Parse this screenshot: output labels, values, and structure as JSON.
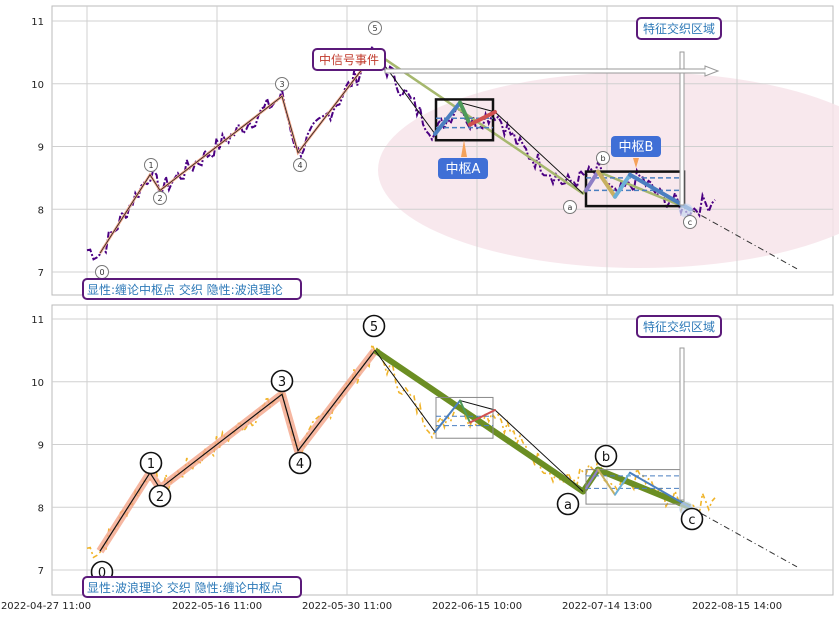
{
  "chart_data": [
    {
      "type": "line",
      "panel": "top",
      "ylim": [
        6.6,
        11.25
      ],
      "yticks": [
        "7",
        "8",
        "9",
        "10",
        "11"
      ],
      "grid": true,
      "label_box": "显性:缠论中枢点 交织 隐性:波浪理论",
      "event_label": "中信号事件",
      "region_label": "特征交织区域",
      "pivot_labels": [
        "中枢A",
        "中枢B"
      ],
      "wave_labels": [
        "0",
        "1",
        "2",
        "3",
        "4",
        "5",
        "a",
        "b",
        "c"
      ],
      "wave_points": [
        {
          "label": "0",
          "x": "2022-05-02",
          "y": 7.3
        },
        {
          "label": "1",
          "x": "2022-05-11",
          "y": 8.55
        },
        {
          "label": "2",
          "x": "2022-05-12",
          "y": 8.3
        },
        {
          "label": "3",
          "x": "2022-05-27",
          "y": 9.8
        },
        {
          "label": "4",
          "x": "2022-05-30",
          "y": 8.9
        },
        {
          "label": "5",
          "x": "2022-06-07",
          "y": 10.5
        },
        {
          "label": "a",
          "x": "2022-07-10",
          "y": 8.25
        },
        {
          "label": "b",
          "x": "2022-07-14",
          "y": 8.6
        },
        {
          "label": "c",
          "x": "2022-07-31",
          "y": 8.0
        }
      ]
    },
    {
      "type": "line",
      "panel": "bottom",
      "ylim": [
        6.6,
        11.25
      ],
      "yticks": [
        "7",
        "8",
        "9",
        "10",
        "11"
      ],
      "xticks": [
        "2022-04-27 11:00",
        "2022-05-16 11:00",
        "2022-05-30 11:00",
        "2022-06-15 10:00",
        "2022-07-14 13:00",
        "2022-08-15 14:00"
      ],
      "grid": true,
      "label_box": "显性:波浪理论 交织 隐性:缠论中枢点",
      "region_label": "特征交织区域",
      "wave_labels": [
        "0",
        "1",
        "2",
        "3",
        "4",
        "5",
        "a",
        "b",
        "c"
      ]
    }
  ],
  "colors": {
    "price": "#4b0082",
    "price_bottom": "#f0b429",
    "wave_up": "#f4a58a",
    "wave_down": "#6b8e23",
    "pivot_blue": "#4a7fc0",
    "pivot_red": "#d05050",
    "pivot_green": "#4f9a5a",
    "label_border": "#5b1a7a",
    "ellipse": "#f7e4ea",
    "blue_box": "#3f6fd6"
  }
}
